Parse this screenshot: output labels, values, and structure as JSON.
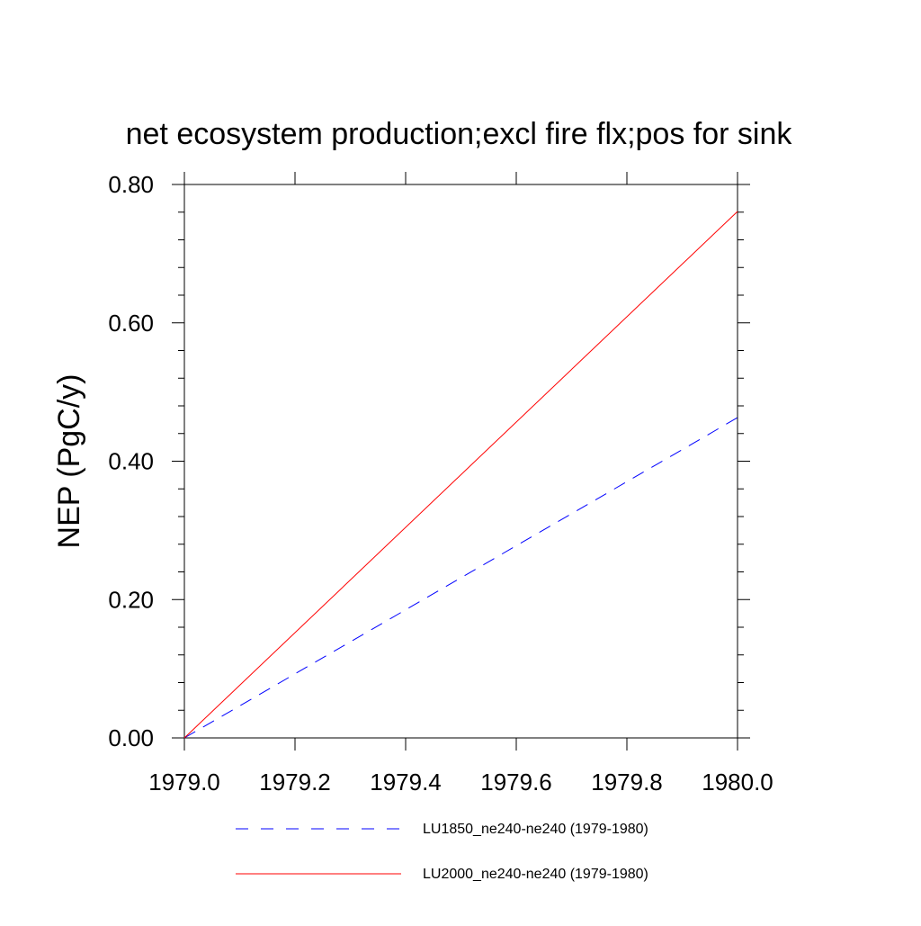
{
  "chart_data": {
    "type": "line",
    "title": "net ecosystem production;excl fire flx;pos for sink",
    "xlabel": "",
    "ylabel": "NEP  (PgC/y)",
    "xlim": [
      1979.0,
      1980.0
    ],
    "ylim": [
      0.0,
      0.8
    ],
    "x_ticks": [
      1979.0,
      1979.2,
      1979.4,
      1979.6,
      1979.8,
      1980.0
    ],
    "x_tick_labels": [
      "1979.0",
      "1979.2",
      "1979.4",
      "1979.6",
      "1979.8",
      "1980.0"
    ],
    "y_ticks": [
      0.0,
      0.2,
      0.4,
      0.6,
      0.8
    ],
    "y_tick_labels": [
      "0.00",
      "0.20",
      "0.40",
      "0.60",
      "0.80"
    ],
    "grid": false,
    "legend_position": "bottom",
    "series": [
      {
        "name": "LU1850_ne240-ne240 (1979-1980)",
        "color": "#0000ff",
        "style": "dashed",
        "x": [
          1979.0,
          1980.0
        ],
        "y": [
          0.0,
          0.463
        ]
      },
      {
        "name": "LU2000_ne240-ne240 (1979-1980)",
        "color": "#ff0000",
        "style": "solid",
        "x": [
          1979.0,
          1980.0
        ],
        "y": [
          0.0,
          0.761
        ]
      }
    ]
  }
}
